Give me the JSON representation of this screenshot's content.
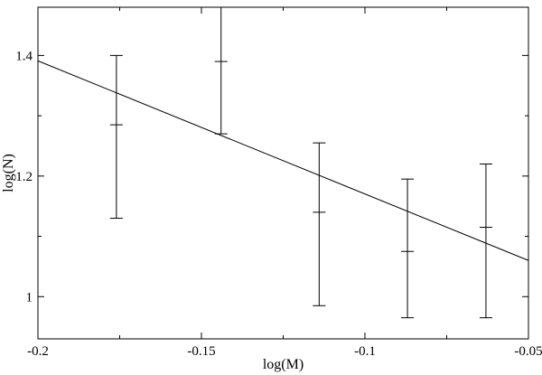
{
  "chart_data": {
    "type": "scatter",
    "title": "",
    "xlabel": "log(M)",
    "ylabel": "log(N)",
    "xlim": [
      -0.2,
      -0.05
    ],
    "ylim": [
      0.93,
      1.48
    ],
    "grid": false,
    "legend": null,
    "color": "#000000",
    "x_major_ticks": [
      -0.2,
      -0.15,
      -0.1,
      -0.05
    ],
    "x_tick_labels": [
      "-0.2",
      "-0.15",
      "-0.1",
      "-0.05"
    ],
    "x_minor_ticks": [
      -0.175,
      -0.125,
      -0.075
    ],
    "y_major_ticks": [
      1.0,
      1.2,
      1.4
    ],
    "y_tick_labels": [
      "1",
      "1.2",
      "1.4"
    ],
    "y_minor_ticks": [
      1.1,
      1.3
    ],
    "points": [
      {
        "x": -0.176,
        "y": 1.285,
        "y_low": 1.13,
        "y_high": 1.4
      },
      {
        "x": -0.144,
        "y": 1.39,
        "y_low": 1.27,
        "y_high": 1.48
      },
      {
        "x": -0.114,
        "y": 1.14,
        "y_low": 0.985,
        "y_high": 1.255
      },
      {
        "x": -0.087,
        "y": 1.075,
        "y_low": 0.965,
        "y_high": 1.195
      },
      {
        "x": -0.063,
        "y": 1.115,
        "y_low": 0.965,
        "y_high": 1.22
      }
    ],
    "fit_line": {
      "x1": -0.2,
      "y1": 1.391,
      "x2": -0.05,
      "y2": 1.06,
      "slope": -2.2,
      "intercept": 0.95
    }
  }
}
